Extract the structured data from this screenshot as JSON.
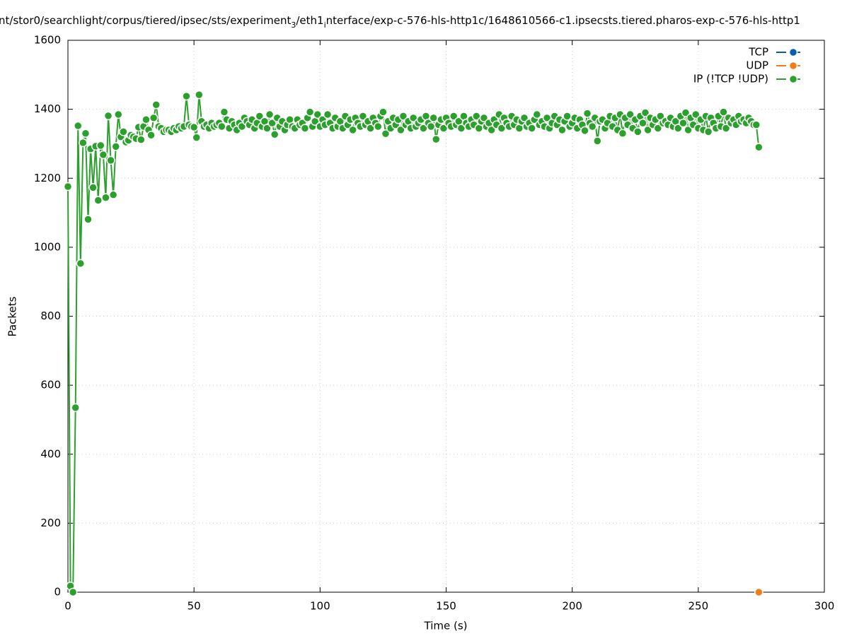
{
  "chart_data": {
    "type": "line",
    "title": [
      "nt/stor0/searchlight/corpus/tiered/ipsec/sts/experiment",
      "3",
      "/eth1",
      "i",
      "nterface/exp-c-576-hls-http1c/1648610566-c1.ipsecsts.tiered.pharos-exp-c-576-hls-http1"
    ],
    "xlabel": "Time (s)",
    "ylabel": "Packets",
    "xlim": [
      0,
      300
    ],
    "xticks": [
      0,
      50,
      100,
      150,
      200,
      250,
      300
    ],
    "ylim": [
      0,
      1600
    ],
    "yticks": [
      0,
      200,
      400,
      600,
      800,
      1000,
      1200,
      1400,
      1600
    ],
    "grid": true,
    "legend": "upper right",
    "series": [
      {
        "name": "TCP",
        "color": "#0060ad",
        "x": [],
        "values": []
      },
      {
        "name": "UDP",
        "color": "#f07d15",
        "x": [
          274
        ],
        "values": [
          0
        ]
      },
      {
        "name": "IP (!TCP  !UDP)",
        "color": "#2ca02c",
        "x": [
          0,
          1,
          2,
          3,
          4,
          5,
          6,
          7,
          8,
          9,
          10,
          11,
          12,
          13,
          14,
          15,
          16,
          17,
          18,
          19,
          20,
          21,
          22,
          23,
          24,
          25,
          26,
          27,
          28,
          29,
          30,
          31,
          32,
          33,
          34,
          35,
          36,
          37,
          38,
          39,
          40,
          41,
          42,
          43,
          44,
          45,
          46,
          47,
          48,
          49,
          50,
          51,
          52,
          53,
          54,
          55,
          56,
          57,
          58,
          59,
          60,
          61,
          62,
          63,
          64,
          65,
          66,
          67,
          68,
          69,
          70,
          71,
          72,
          73,
          74,
          75,
          76,
          77,
          78,
          79,
          80,
          81,
          82,
          83,
          84,
          85,
          86,
          87,
          88,
          89,
          90,
          91,
          92,
          93,
          94,
          95,
          96,
          97,
          98,
          99,
          100,
          101,
          102,
          103,
          104,
          105,
          106,
          107,
          108,
          109,
          110,
          111,
          112,
          113,
          114,
          115,
          116,
          117,
          118,
          119,
          120,
          121,
          122,
          123,
          124,
          125,
          126,
          127,
          128,
          129,
          130,
          131,
          132,
          133,
          134,
          135,
          136,
          137,
          138,
          139,
          140,
          141,
          142,
          143,
          144,
          145,
          146,
          147,
          148,
          149,
          150,
          151,
          152,
          153,
          154,
          155,
          156,
          157,
          158,
          159,
          160,
          161,
          162,
          163,
          164,
          165,
          166,
          167,
          168,
          169,
          170,
          171,
          172,
          173,
          174,
          175,
          176,
          177,
          178,
          179,
          180,
          181,
          182,
          183,
          184,
          185,
          186,
          187,
          188,
          189,
          190,
          191,
          192,
          193,
          194,
          195,
          196,
          197,
          198,
          199,
          200,
          201,
          202,
          203,
          204,
          205,
          206,
          207,
          208,
          209,
          210,
          211,
          212,
          213,
          214,
          215,
          216,
          217,
          218,
          219,
          220,
          221,
          222,
          223,
          224,
          225,
          226,
          227,
          228,
          229,
          230,
          231,
          232,
          233,
          234,
          235,
          236,
          237,
          238,
          239,
          240,
          241,
          242,
          243,
          244,
          245,
          246,
          247,
          248,
          249,
          250,
          251,
          252,
          253,
          254,
          255,
          256,
          257,
          258,
          259,
          260,
          261,
          262,
          263,
          264,
          265,
          266,
          267,
          268,
          269,
          270,
          271,
          272,
          273,
          274
        ],
        "values": [
          1176,
          18,
          0,
          535,
          1352,
          953,
          1303,
          1330,
          1081,
          1285,
          1173,
          1293,
          1136,
          1295,
          1268,
          1144,
          1381,
          1252,
          1152,
          1292,
          1385,
          1320,
          1335,
          1305,
          1310,
          1325,
          1320,
          1315,
          1348,
          1312,
          1350,
          1370,
          1340,
          1325,
          1375,
          1413,
          1350,
          1345,
          1335,
          1340,
          1340,
          1335,
          1345,
          1340,
          1350,
          1345,
          1350,
          1438,
          1355,
          1350,
          1348,
          1318,
          1442,
          1365,
          1350,
          1355,
          1345,
          1360,
          1350,
          1355,
          1360,
          1350,
          1392,
          1370,
          1345,
          1365,
          1355,
          1340,
          1360,
          1350,
          1375,
          1365,
          1355,
          1370,
          1345,
          1360,
          1380,
          1350,
          1365,
          1345,
          1385,
          1360,
          1327,
          1375,
          1350,
          1365,
          1340,
          1355,
          1370,
          1350,
          1345,
          1370,
          1355,
          1360,
          1345,
          1375,
          1392,
          1350,
          1365,
          1385,
          1350,
          1370,
          1355,
          1385,
          1360,
          1345,
          1375,
          1350,
          1365,
          1345,
          1380,
          1355,
          1370,
          1340,
          1375,
          1360,
          1350,
          1380,
          1355,
          1365,
          1345,
          1375,
          1360,
          1350,
          1380,
          1392,
          1329,
          1365,
          1345,
          1375,
          1355,
          1370,
          1340,
          1380,
          1355,
          1365,
          1345,
          1375,
          1350,
          1360,
          1370,
          1345,
          1380,
          1360,
          1350,
          1375,
          1313,
          1355,
          1370,
          1345,
          1375,
          1360,
          1350,
          1380,
          1355,
          1365,
          1345,
          1380,
          1360,
          1350,
          1370,
          1355,
          1380,
          1345,
          1365,
          1375,
          1350,
          1360,
          1340,
          1370,
          1355,
          1385,
          1345,
          1375,
          1360,
          1350,
          1380,
          1355,
          1370,
          1345,
          1365,
          1375,
          1350,
          1360,
          1345,
          1370,
          1385,
          1355,
          1365,
          1350,
          1375,
          1345,
          1360,
          1380,
          1355,
          1370,
          1340,
          1365,
          1380,
          1350,
          1360,
          1375,
          1345,
          1370,
          1355,
          1338,
          1388,
          1360,
          1350,
          1375,
          1308,
          1365,
          1370,
          1345,
          1360,
          1380,
          1350,
          1375,
          1340,
          1385,
          1330,
          1375,
          1355,
          1385,
          1345,
          1370,
          1335,
          1380,
          1360,
          1390,
          1340,
          1375,
          1355,
          1370,
          1345,
          1380,
          1360,
          1365,
          1355,
          1375,
          1350,
          1365,
          1345,
          1380,
          1360,
          1390,
          1340,
          1375,
          1355,
          1385,
          1345,
          1370,
          1340,
          1380,
          1335,
          1375,
          1360,
          1345,
          1380,
          1350,
          1392,
          1345,
          1375,
          1360,
          1370,
          1355,
          1380,
          1365,
          1370,
          1360,
          1375,
          1365,
          1355,
          1355,
          1290
        ]
      }
    ]
  }
}
